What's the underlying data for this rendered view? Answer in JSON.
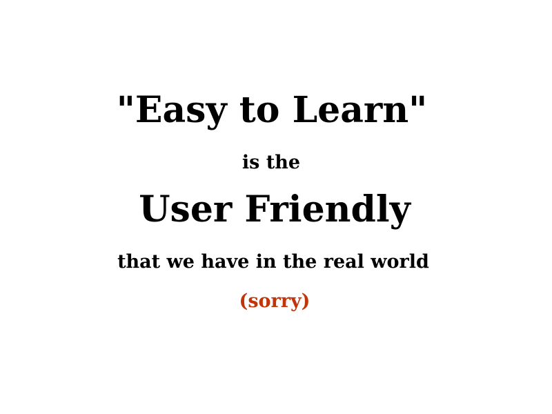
{
  "slide": {
    "line1": "\"Easy to Learn\"",
    "line2": "is the",
    "line3": "User Friendly",
    "line4": "that we have in the real world",
    "line5": "(sorry)"
  },
  "colors": {
    "text": "#000000",
    "accent": "#c0350a",
    "background": "#ffffff"
  }
}
